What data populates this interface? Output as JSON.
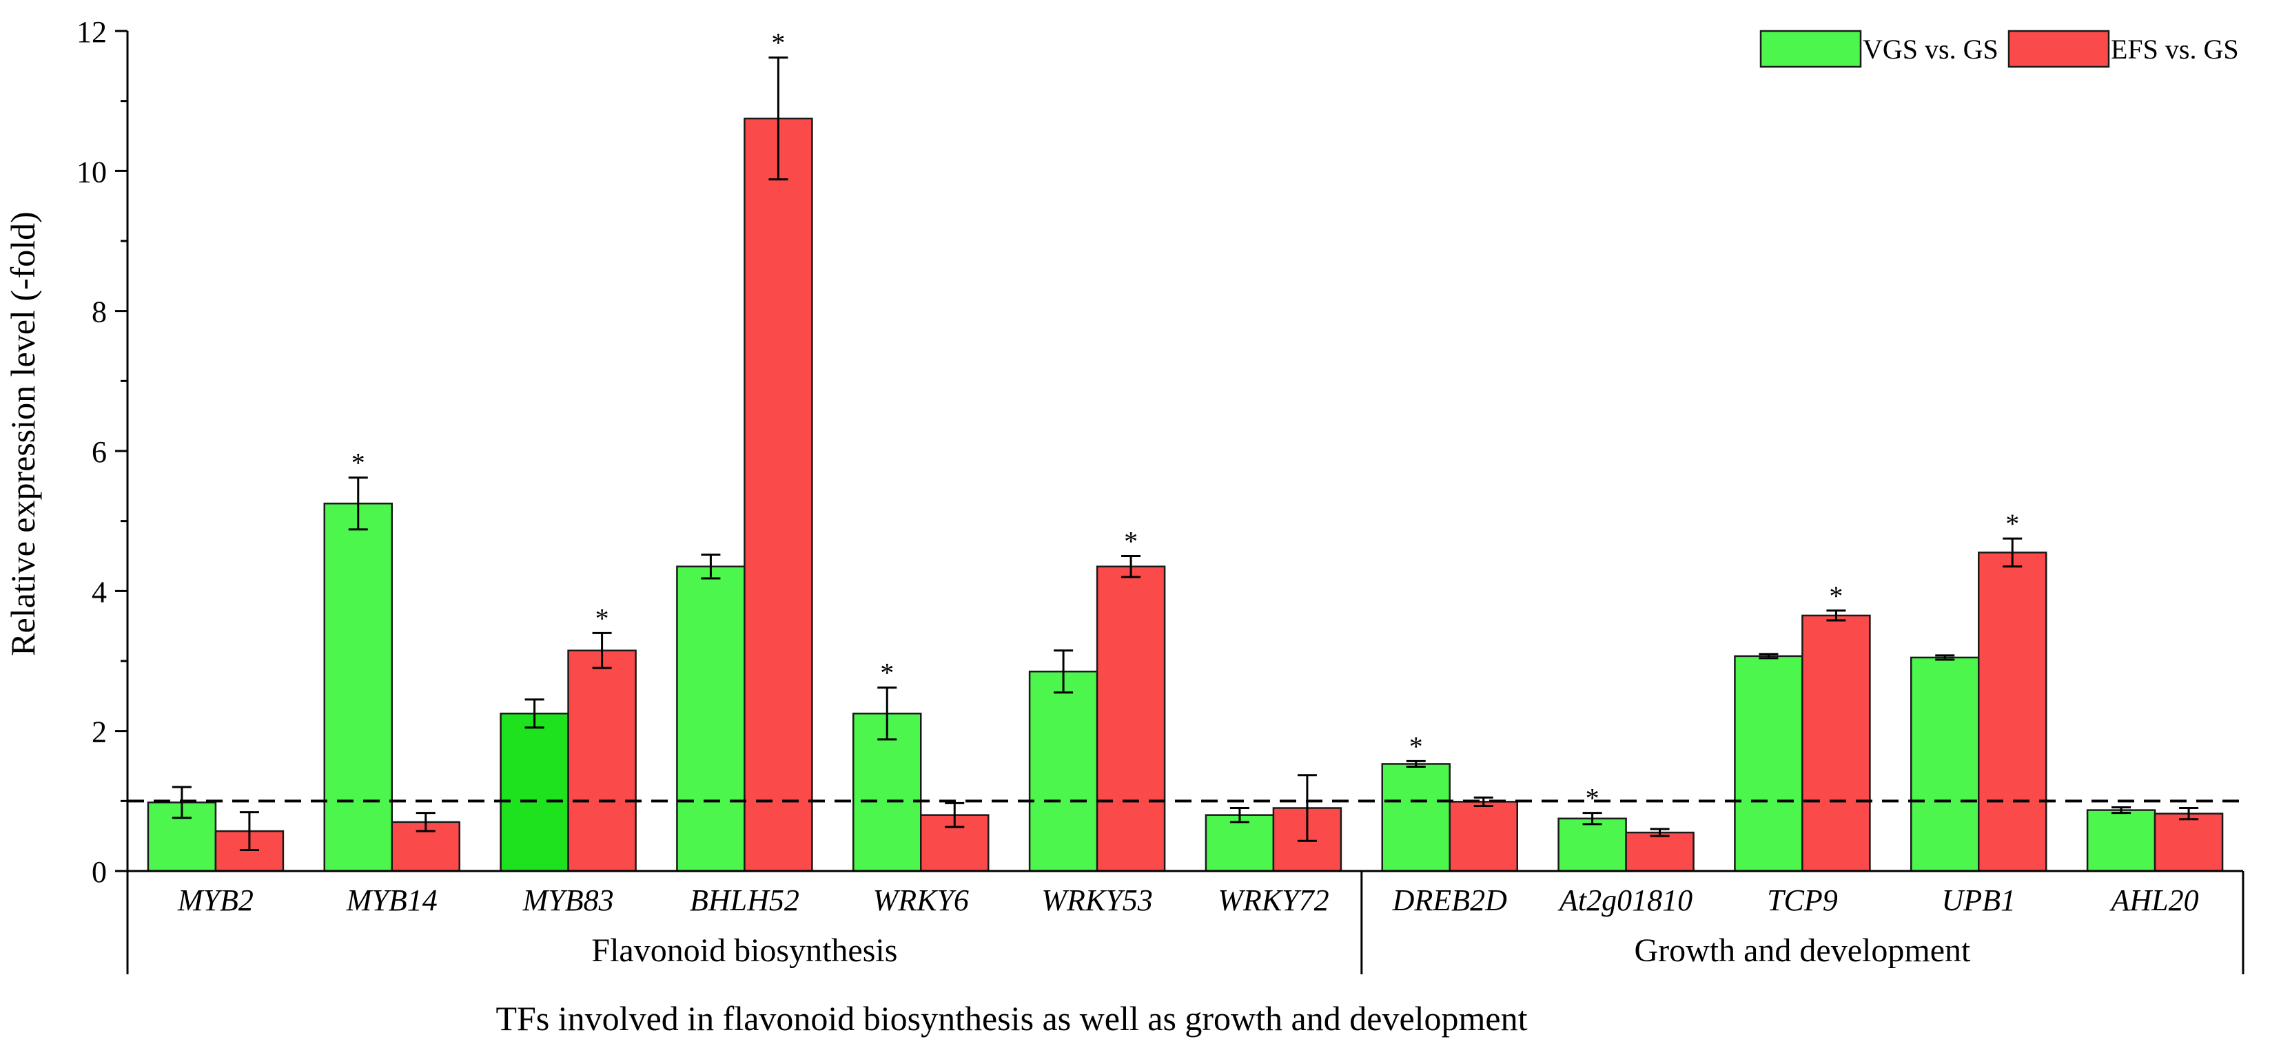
{
  "chart_data": {
    "type": "bar",
    "title": "",
    "ylabel": "Relative expression level (-fold)",
    "xlabel": "TFs involved in flavonoid biosynthesis as well as growth and development",
    "ylim": [
      0,
      12
    ],
    "yticks": [
      "0",
      "2",
      "4",
      "6",
      "8",
      "10",
      "12"
    ],
    "reference_line": 1,
    "legend_position": "top-right",
    "categories": [
      "MYB2",
      "MYB14",
      "MYB83",
      "BHLH52",
      "WRKY6",
      "WRKY53",
      "WRKY72",
      "DREB2D",
      "At2g01810",
      "TCP9",
      "UPB1",
      "AHL20"
    ],
    "groups": [
      {
        "label": "Flavonoid biosynthesis",
        "count": 7
      },
      {
        "label": "Growth and development",
        "count": 5
      }
    ],
    "series": [
      {
        "name": "VGS vs. GS",
        "color": "#4cf64c",
        "values": [
          0.98,
          5.25,
          2.25,
          4.35,
          2.25,
          2.85,
          0.8,
          1.53,
          0.75,
          3.07,
          3.05,
          0.87
        ],
        "errors": [
          0.22,
          0.37,
          0.2,
          0.17,
          0.37,
          0.3,
          0.1,
          0.04,
          0.08,
          0.03,
          0.03,
          0.04
        ],
        "significant": [
          false,
          true,
          false,
          false,
          true,
          false,
          false,
          true,
          true,
          false,
          false,
          false
        ]
      },
      {
        "name": "EFS vs. GS",
        "color": "#fa4a4a",
        "values": [
          0.57,
          0.7,
          3.15,
          10.75,
          0.8,
          4.35,
          0.9,
          0.99,
          0.55,
          3.65,
          4.55,
          0.82
        ],
        "errors": [
          0.27,
          0.13,
          0.25,
          0.87,
          0.17,
          0.15,
          0.47,
          0.06,
          0.05,
          0.07,
          0.2,
          0.08
        ],
        "significant": [
          false,
          false,
          true,
          true,
          false,
          true,
          false,
          false,
          false,
          true,
          true,
          false
        ]
      }
    ],
    "significance_marker": "*"
  }
}
